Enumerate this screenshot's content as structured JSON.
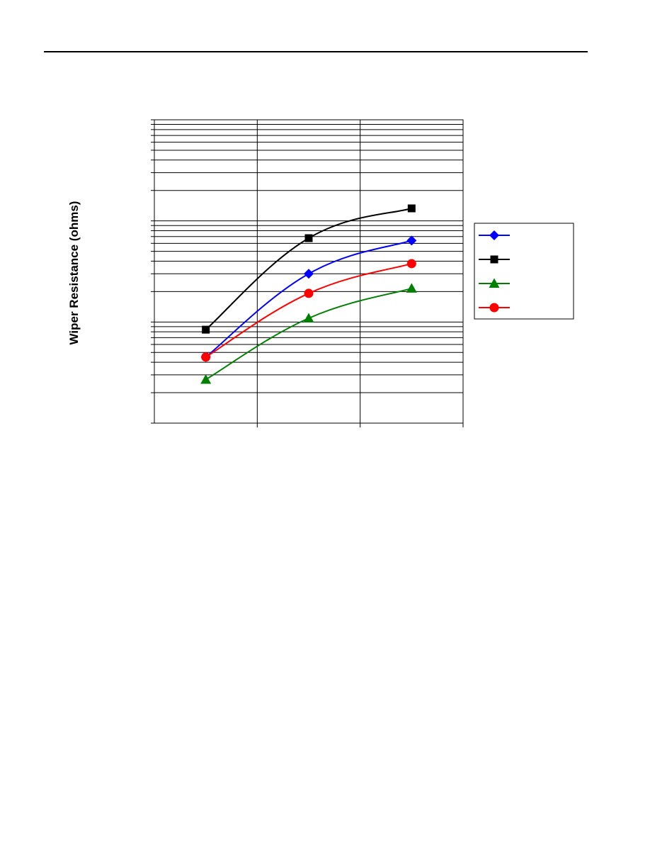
{
  "chart_data": {
    "type": "line",
    "y_axis_label": "Wiper Resistance (ohms)",
    "categories": [
      null,
      null,
      null
    ],
    "series": [
      {
        "color": "#0000ff",
        "marker": "diamond",
        "values": [
          45,
          300,
          640
        ]
      },
      {
        "color": "#000000",
        "marker": "square",
        "values": [
          84,
          675,
          1330
        ]
      },
      {
        "color": "#008000",
        "marker": "triangle",
        "values": [
          27,
          109,
          215
        ]
      },
      {
        "color": "#ff0000",
        "marker": "circle",
        "values": [
          45,
          192,
          378
        ]
      }
    ],
    "log_y": true,
    "ylim": [
      10,
      10000
    ],
    "yticks": [
      10,
      20,
      30,
      40,
      50,
      60,
      70,
      80,
      90,
      100,
      200,
      300,
      400,
      500,
      600,
      700,
      800,
      900,
      1000,
      2000,
      3000,
      4000,
      5000,
      6000,
      7000,
      8000,
      9000,
      10000
    ],
    "grid": true,
    "legend": "right"
  }
}
